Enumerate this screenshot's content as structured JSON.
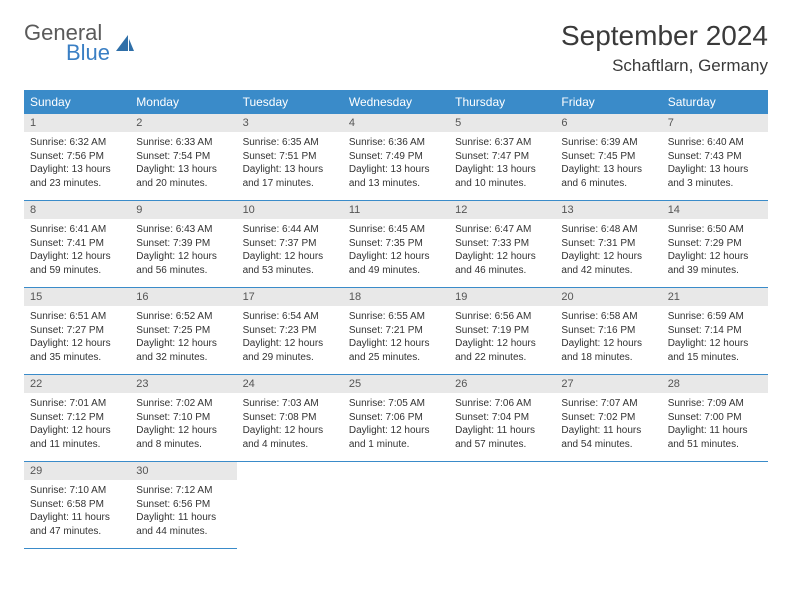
{
  "logo": {
    "text1": "General",
    "text2": "Blue"
  },
  "title": "September 2024",
  "location": "Schaftlarn, Germany",
  "colors": {
    "header_bg": "#3a8bc9",
    "header_text": "#ffffff",
    "daynum_bg": "#e8e8e8",
    "border": "#3a8bc9",
    "logo_gray": "#5a5a5a",
    "logo_blue": "#3a7fc4"
  },
  "day_names": [
    "Sunday",
    "Monday",
    "Tuesday",
    "Wednesday",
    "Thursday",
    "Friday",
    "Saturday"
  ],
  "weeks": [
    [
      {
        "n": "1",
        "sr": "6:32 AM",
        "ss": "7:56 PM",
        "dl": "13 hours and 23 minutes."
      },
      {
        "n": "2",
        "sr": "6:33 AM",
        "ss": "7:54 PM",
        "dl": "13 hours and 20 minutes."
      },
      {
        "n": "3",
        "sr": "6:35 AM",
        "ss": "7:51 PM",
        "dl": "13 hours and 17 minutes."
      },
      {
        "n": "4",
        "sr": "6:36 AM",
        "ss": "7:49 PM",
        "dl": "13 hours and 13 minutes."
      },
      {
        "n": "5",
        "sr": "6:37 AM",
        "ss": "7:47 PM",
        "dl": "13 hours and 10 minutes."
      },
      {
        "n": "6",
        "sr": "6:39 AM",
        "ss": "7:45 PM",
        "dl": "13 hours and 6 minutes."
      },
      {
        "n": "7",
        "sr": "6:40 AM",
        "ss": "7:43 PM",
        "dl": "13 hours and 3 minutes."
      }
    ],
    [
      {
        "n": "8",
        "sr": "6:41 AM",
        "ss": "7:41 PM",
        "dl": "12 hours and 59 minutes."
      },
      {
        "n": "9",
        "sr": "6:43 AM",
        "ss": "7:39 PM",
        "dl": "12 hours and 56 minutes."
      },
      {
        "n": "10",
        "sr": "6:44 AM",
        "ss": "7:37 PM",
        "dl": "12 hours and 53 minutes."
      },
      {
        "n": "11",
        "sr": "6:45 AM",
        "ss": "7:35 PM",
        "dl": "12 hours and 49 minutes."
      },
      {
        "n": "12",
        "sr": "6:47 AM",
        "ss": "7:33 PM",
        "dl": "12 hours and 46 minutes."
      },
      {
        "n": "13",
        "sr": "6:48 AM",
        "ss": "7:31 PM",
        "dl": "12 hours and 42 minutes."
      },
      {
        "n": "14",
        "sr": "6:50 AM",
        "ss": "7:29 PM",
        "dl": "12 hours and 39 minutes."
      }
    ],
    [
      {
        "n": "15",
        "sr": "6:51 AM",
        "ss": "7:27 PM",
        "dl": "12 hours and 35 minutes."
      },
      {
        "n": "16",
        "sr": "6:52 AM",
        "ss": "7:25 PM",
        "dl": "12 hours and 32 minutes."
      },
      {
        "n": "17",
        "sr": "6:54 AM",
        "ss": "7:23 PM",
        "dl": "12 hours and 29 minutes."
      },
      {
        "n": "18",
        "sr": "6:55 AM",
        "ss": "7:21 PM",
        "dl": "12 hours and 25 minutes."
      },
      {
        "n": "19",
        "sr": "6:56 AM",
        "ss": "7:19 PM",
        "dl": "12 hours and 22 minutes."
      },
      {
        "n": "20",
        "sr": "6:58 AM",
        "ss": "7:16 PM",
        "dl": "12 hours and 18 minutes."
      },
      {
        "n": "21",
        "sr": "6:59 AM",
        "ss": "7:14 PM",
        "dl": "12 hours and 15 minutes."
      }
    ],
    [
      {
        "n": "22",
        "sr": "7:01 AM",
        "ss": "7:12 PM",
        "dl": "12 hours and 11 minutes."
      },
      {
        "n": "23",
        "sr": "7:02 AM",
        "ss": "7:10 PM",
        "dl": "12 hours and 8 minutes."
      },
      {
        "n": "24",
        "sr": "7:03 AM",
        "ss": "7:08 PM",
        "dl": "12 hours and 4 minutes."
      },
      {
        "n": "25",
        "sr": "7:05 AM",
        "ss": "7:06 PM",
        "dl": "12 hours and 1 minute."
      },
      {
        "n": "26",
        "sr": "7:06 AM",
        "ss": "7:04 PM",
        "dl": "11 hours and 57 minutes."
      },
      {
        "n": "27",
        "sr": "7:07 AM",
        "ss": "7:02 PM",
        "dl": "11 hours and 54 minutes."
      },
      {
        "n": "28",
        "sr": "7:09 AM",
        "ss": "7:00 PM",
        "dl": "11 hours and 51 minutes."
      }
    ],
    [
      {
        "n": "29",
        "sr": "7:10 AM",
        "ss": "6:58 PM",
        "dl": "11 hours and 47 minutes."
      },
      {
        "n": "30",
        "sr": "7:12 AM",
        "ss": "6:56 PM",
        "dl": "11 hours and 44 minutes."
      },
      null,
      null,
      null,
      null,
      null
    ]
  ],
  "labels": {
    "sunrise": "Sunrise:",
    "sunset": "Sunset:",
    "daylight": "Daylight:"
  }
}
